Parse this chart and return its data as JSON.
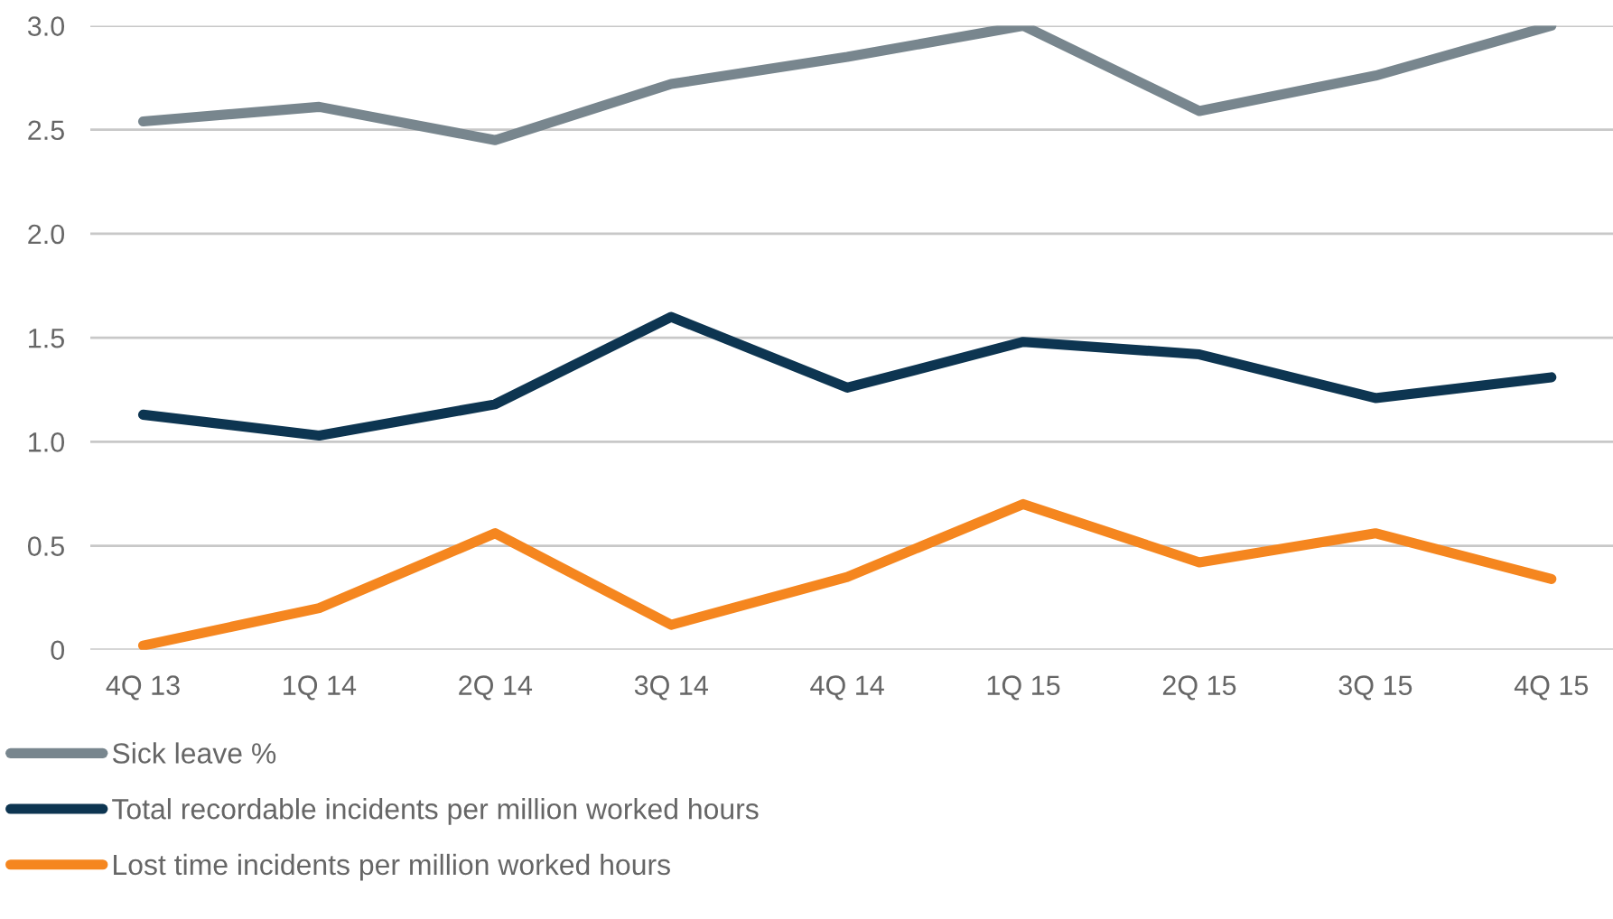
{
  "chart_data": {
    "type": "line",
    "categories": [
      "4Q 13",
      "1Q 14",
      "2Q 14",
      "3Q 14",
      "4Q 14",
      "1Q 15",
      "2Q 15",
      "3Q 15",
      "4Q 15"
    ],
    "series": [
      {
        "name": "Sick leave %",
        "color": "#78868e",
        "values": [
          2.54,
          2.61,
          2.45,
          2.72,
          2.85,
          3.0,
          2.59,
          2.76,
          3.0
        ]
      },
      {
        "name": "Total recordable incidents per million worked hours",
        "color": "#0d3551",
        "values": [
          1.13,
          1.03,
          1.18,
          1.6,
          1.26,
          1.48,
          1.42,
          1.21,
          1.31
        ]
      },
      {
        "name": "Lost time incidents per million worked hours",
        "color": "#f5861f",
        "values": [
          0.02,
          0.2,
          0.56,
          0.12,
          0.35,
          0.7,
          0.42,
          0.56,
          0.34
        ]
      }
    ],
    "ylim": [
      0,
      3.0
    ],
    "yticks": [
      0,
      {
        "value": 0.5,
        "label": "0.5"
      },
      {
        "value": 1.0,
        "label": "1.0"
      },
      {
        "value": 1.5,
        "label": "1.5"
      },
      {
        "value": 2.0,
        "label": "2.0"
      },
      {
        "value": 2.5,
        "label": "2.5"
      },
      {
        "value": 3.0,
        "label": "3.0"
      }
    ],
    "grid": "y",
    "legend": "bottom left",
    "line_style": "solid",
    "marker": "none"
  }
}
